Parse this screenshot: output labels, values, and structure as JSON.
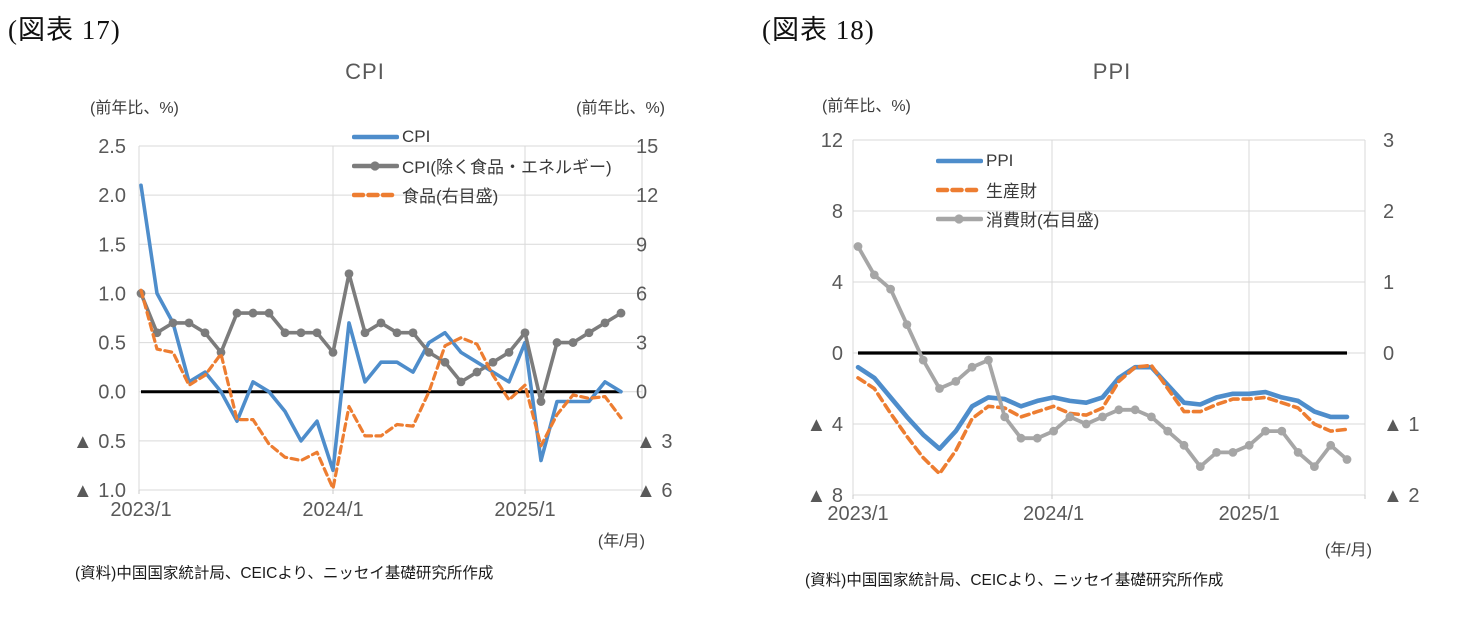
{
  "colors": {
    "blue": "#4E8DCB",
    "orange": "#ED7D31",
    "gray_dark": "#7C7C7C",
    "gray_light": "#A6A6A6",
    "grid": "#D9D9D9",
    "axis_line": "#C9C9C9",
    "zero_line": "#000000",
    "axis_text": "#595959"
  },
  "figures": [
    {
      "fig_label": "(図表 17)",
      "title": "CPI",
      "left_axis_unit": "(前年比、%)",
      "right_axis_unit": "(前年比、%)",
      "x_axis_unit": "(年/月)",
      "source": "(資料)中国国家統計局、CEICより、ニッセイ基礎研究所作成"
    },
    {
      "fig_label": "(図表 18)",
      "title": "PPI",
      "left_axis_unit": "(前年比、%)",
      "x_axis_unit": "(年/月)",
      "source": "(資料)中国国家統計局、CEICより、ニッセイ基礎研究所作成"
    }
  ],
  "chart_data": [
    {
      "type": "line",
      "title": "CPI",
      "x": [
        "2023/1",
        "2023/2",
        "2023/3",
        "2023/4",
        "2023/5",
        "2023/6",
        "2023/7",
        "2023/8",
        "2023/9",
        "2023/10",
        "2023/11",
        "2023/12",
        "2024/1",
        "2024/2",
        "2024/3",
        "2024/4",
        "2024/5",
        "2024/6",
        "2024/7",
        "2024/8",
        "2024/9",
        "2024/10",
        "2024/11",
        "2024/12",
        "2025/1",
        "2025/2",
        "2025/3",
        "2025/4",
        "2025/5",
        "2025/6",
        "2025/7"
      ],
      "x_tick_labels": [
        "2023/1",
        "2024/1",
        "2025/1"
      ],
      "x_tick_indices": [
        0,
        12,
        24
      ],
      "grid": true,
      "legend_position": "top-center",
      "left_axis": {
        "min": -1.0,
        "max": 2.5,
        "tick_values": [
          2.5,
          2.0,
          1.5,
          1.0,
          0.5,
          0.0,
          -0.5,
          -1.0
        ],
        "tick_labels": [
          "2.5",
          "2.0",
          "1.5",
          "1.0",
          "0.5",
          "0.0",
          "▲ 0.5",
          "▲ 1.0"
        ]
      },
      "right_axis": {
        "min": -6,
        "max": 15,
        "tick_values": [
          15,
          12,
          9,
          6,
          3,
          0,
          -3,
          -6
        ],
        "tick_labels": [
          "15",
          "12",
          "9",
          "6",
          "3",
          "0",
          "▲ 3",
          "▲ 6"
        ]
      },
      "zero_line": true,
      "series": [
        {
          "name": "CPI",
          "axis": "left",
          "color": "#4E8DCB",
          "style": "solid",
          "markers": false,
          "values": [
            2.1,
            1.0,
            0.7,
            0.1,
            0.2,
            0.0,
            -0.3,
            0.1,
            0.0,
            -0.2,
            -0.5,
            -0.3,
            -0.8,
            0.7,
            0.1,
            0.3,
            0.3,
            0.2,
            0.5,
            0.6,
            0.4,
            0.3,
            0.2,
            0.1,
            0.5,
            -0.7,
            -0.1,
            -0.1,
            -0.1,
            0.1,
            0.0
          ]
        },
        {
          "name": "CPI(除く食品・エネルギー)",
          "axis": "left",
          "color": "#7C7C7C",
          "style": "solid",
          "markers": true,
          "values": [
            1.0,
            0.6,
            0.7,
            0.7,
            0.6,
            0.4,
            0.8,
            0.8,
            0.8,
            0.6,
            0.6,
            0.6,
            0.4,
            1.2,
            0.6,
            0.7,
            0.6,
            0.6,
            0.4,
            0.3,
            0.1,
            0.2,
            0.3,
            0.4,
            0.6,
            -0.1,
            0.5,
            0.5,
            0.6,
            0.7,
            0.8
          ]
        },
        {
          "name": "食品(右目盛)",
          "axis": "right",
          "color": "#ED7D31",
          "style": "dashed",
          "markers": false,
          "values": [
            6.2,
            2.6,
            2.4,
            0.4,
            1.0,
            2.3,
            -1.7,
            -1.7,
            -3.2,
            -4.0,
            -4.2,
            -3.7,
            -5.9,
            -0.9,
            -2.7,
            -2.7,
            -2.0,
            -2.1,
            0.0,
            2.8,
            3.3,
            2.9,
            1.0,
            -0.5,
            0.4,
            -3.3,
            -1.4,
            -0.2,
            -0.4,
            -0.3,
            -1.6
          ]
        }
      ]
    },
    {
      "type": "line",
      "title": "PPI",
      "x": [
        "2023/1",
        "2023/2",
        "2023/3",
        "2023/4",
        "2023/5",
        "2023/6",
        "2023/7",
        "2023/8",
        "2023/9",
        "2023/10",
        "2023/11",
        "2023/12",
        "2024/1",
        "2024/2",
        "2024/3",
        "2024/4",
        "2024/5",
        "2024/6",
        "2024/7",
        "2024/8",
        "2024/9",
        "2024/10",
        "2024/11",
        "2024/12",
        "2025/1",
        "2025/2",
        "2025/3",
        "2025/4",
        "2025/5",
        "2025/6",
        "2025/7"
      ],
      "x_tick_labels": [
        "2023/1",
        "2024/1",
        "2025/1"
      ],
      "x_tick_indices": [
        0,
        12,
        24
      ],
      "grid": true,
      "legend_position": "top-center",
      "left_axis": {
        "min": -8,
        "max": 12,
        "tick_values": [
          12,
          8,
          4,
          0,
          -4,
          -8
        ],
        "tick_labels": [
          "12",
          "8",
          "4",
          "0",
          "▲ 4",
          "▲ 8"
        ]
      },
      "right_axis": {
        "min": -2,
        "max": 3,
        "tick_values": [
          3,
          2,
          1,
          0,
          -1,
          -2
        ],
        "tick_labels": [
          "3",
          "2",
          "1",
          "0",
          "▲ 1",
          "▲ 2"
        ]
      },
      "zero_line": true,
      "series": [
        {
          "name": "PPI",
          "axis": "left",
          "color": "#4E8DCB",
          "style": "solid",
          "markers": false,
          "values": [
            -0.8,
            -1.4,
            -2.5,
            -3.6,
            -4.6,
            -5.4,
            -4.4,
            -3.0,
            -2.5,
            -2.6,
            -3.0,
            -2.7,
            -2.5,
            -2.7,
            -2.8,
            -2.5,
            -1.4,
            -0.8,
            -0.8,
            -1.8,
            -2.8,
            -2.9,
            -2.5,
            -2.3,
            -2.3,
            -2.2,
            -2.5,
            -2.7,
            -3.3,
            -3.6,
            -3.6
          ]
        },
        {
          "name": "生産財",
          "axis": "left",
          "color": "#ED7D31",
          "style": "dashed",
          "markers": false,
          "values": [
            -1.4,
            -2.0,
            -3.4,
            -4.7,
            -5.9,
            -6.8,
            -5.5,
            -3.7,
            -3.0,
            -3.1,
            -3.6,
            -3.3,
            -3.0,
            -3.4,
            -3.5,
            -3.1,
            -1.6,
            -0.8,
            -0.7,
            -2.0,
            -3.3,
            -3.3,
            -2.9,
            -2.6,
            -2.6,
            -2.5,
            -2.8,
            -3.1,
            -4.0,
            -4.4,
            -4.3
          ]
        },
        {
          "name": "消費財(右目盛)",
          "axis": "right",
          "color": "#A6A6A6",
          "style": "solid",
          "markers": true,
          "values": [
            1.5,
            1.1,
            0.9,
            0.4,
            -0.1,
            -0.5,
            -0.4,
            -0.2,
            -0.1,
            -0.9,
            -1.2,
            -1.2,
            -1.1,
            -0.9,
            -1.0,
            -0.9,
            -0.8,
            -0.8,
            -0.9,
            -1.1,
            -1.3,
            -1.6,
            -1.4,
            -1.4,
            -1.3,
            -1.1,
            -1.1,
            -1.4,
            -1.6,
            -1.3,
            -1.5
          ]
        }
      ]
    }
  ]
}
